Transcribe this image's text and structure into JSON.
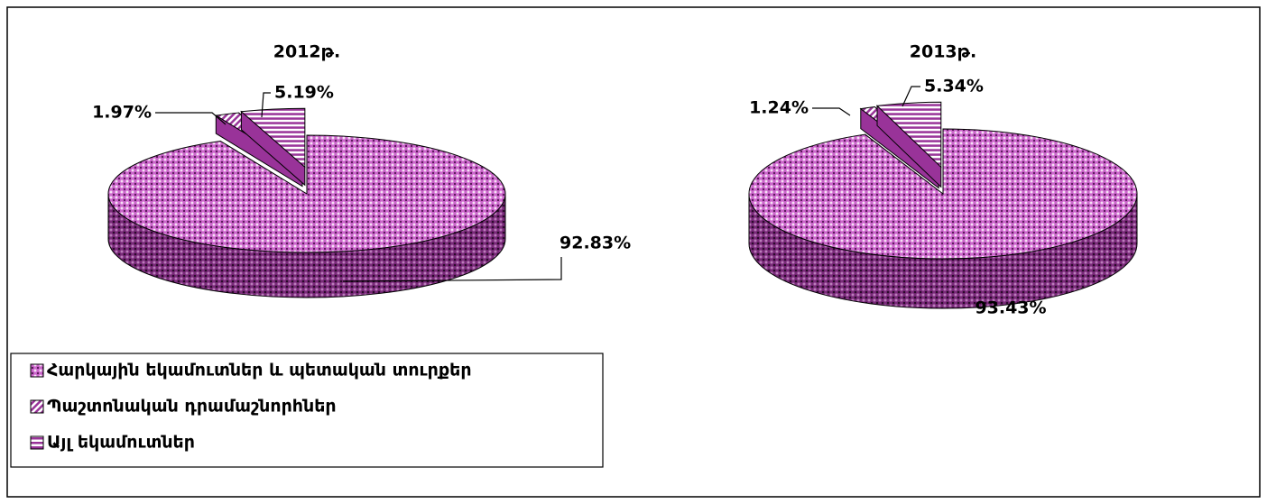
{
  "chart_data": [
    {
      "type": "pie",
      "title": "2012թ.",
      "categories": [
        "Հարկային եկամուտներ և պետական տուրքեր",
        "Պաշտոնական դրամաշնորհներ",
        "Այլ եկամուտներ"
      ],
      "values": [
        92.83,
        1.97,
        5.19
      ],
      "value_labels": [
        "92.83%",
        "1.97%",
        "5.19%"
      ],
      "colors": [
        "#cc66cc",
        "#993399",
        "#993399"
      ]
    },
    {
      "type": "pie",
      "title": "2013թ.",
      "values": [
        93.43,
        1.24,
        5.34
      ],
      "value_labels": [
        "93.43%",
        "1.24%",
        "5.34%"
      ],
      "colors": [
        "#cc66cc",
        "#993399",
        "#993399"
      ]
    }
  ]
}
